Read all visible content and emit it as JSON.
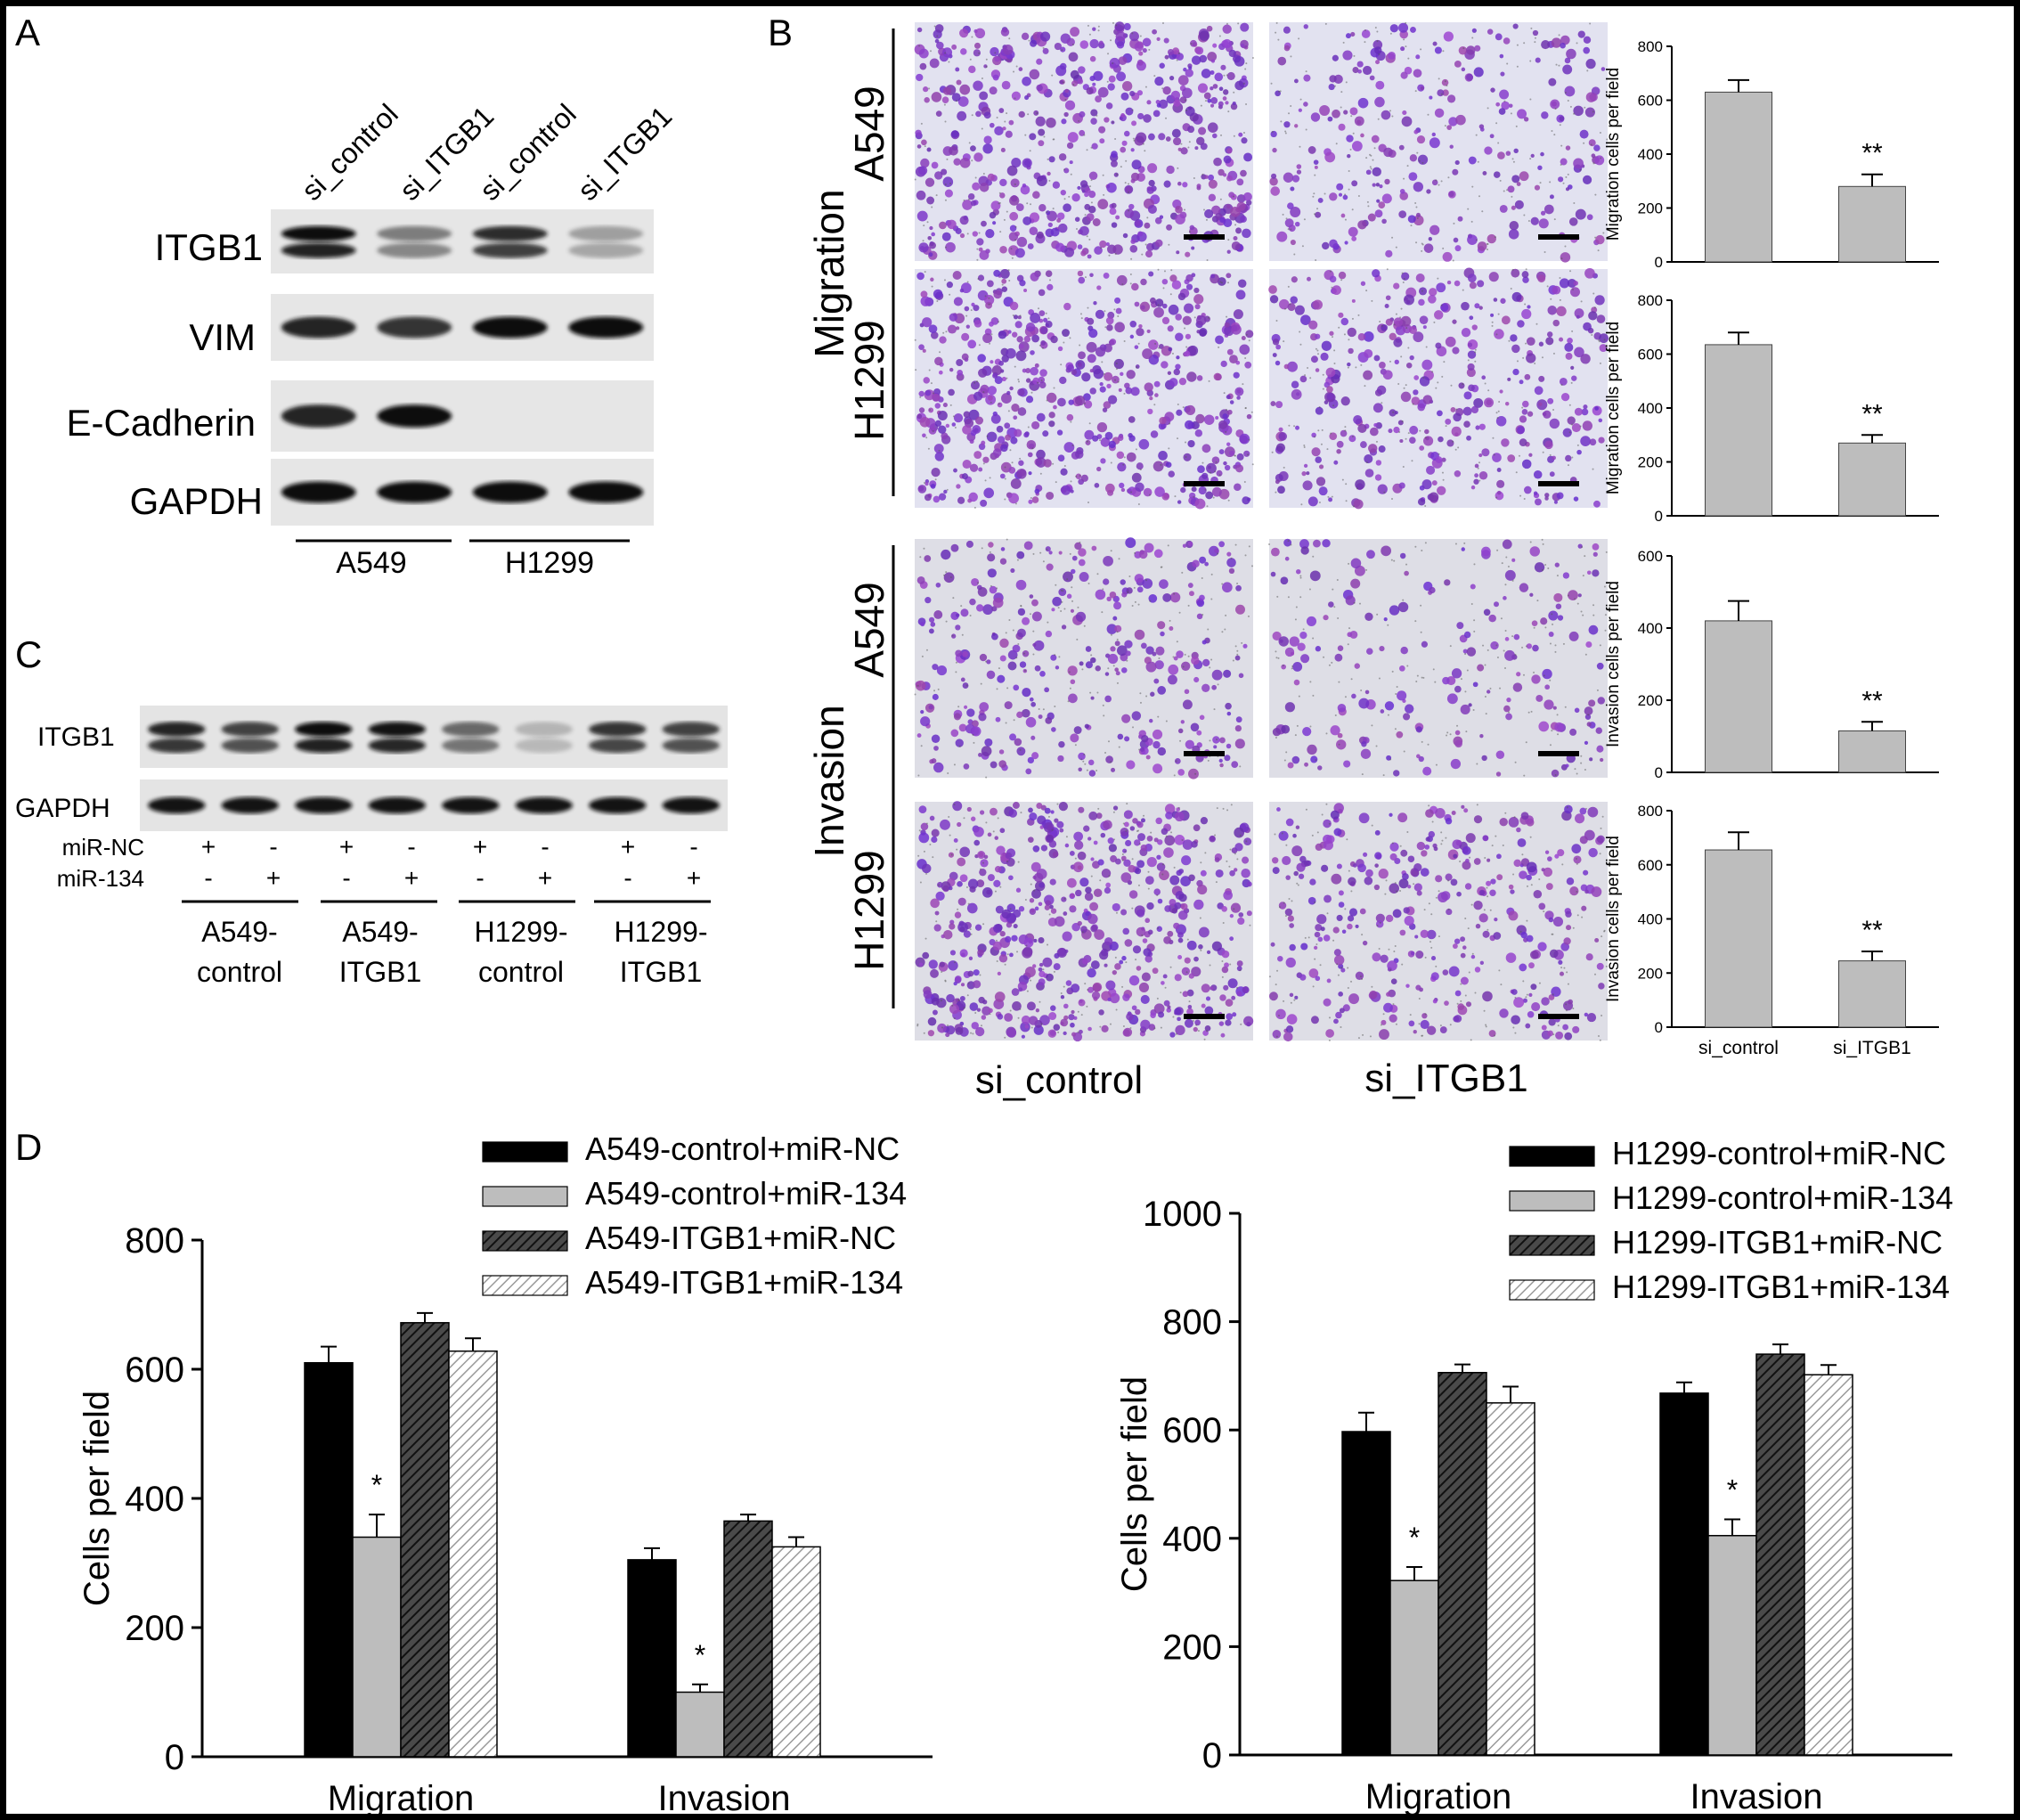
{
  "panels": {
    "A": {
      "letter": "A",
      "lanes": [
        "si_control",
        "si_ITGB1",
        "si_control",
        "si_ITGB1"
      ],
      "blots": [
        {
          "label": "ITGB1",
          "bands": [
            1.0,
            0.4,
            0.8,
            0.2
          ],
          "double": true
        },
        {
          "label": "VIM",
          "bands": [
            0.85,
            0.75,
            1.0,
            0.95
          ],
          "double": false
        },
        {
          "label": "E-Cadherin",
          "bands": [
            0.85,
            0.95,
            0.0,
            0.0
          ],
          "double": false
        },
        {
          "label": "GAPDH",
          "bands": [
            0.95,
            0.95,
            0.95,
            0.95
          ],
          "double": false
        }
      ],
      "groups": [
        "A549",
        "H1299"
      ]
    },
    "B": {
      "letter": "B",
      "sections": [
        "Migration",
        "Invasion"
      ],
      "rows": [
        "A549",
        "H1299",
        "A549",
        "H1299"
      ],
      "columns": [
        "si_control",
        "si_ITGB1"
      ],
      "cell_density": [
        [
          0.95,
          0.4
        ],
        [
          0.95,
          0.6
        ],
        [
          0.5,
          0.25
        ],
        [
          0.98,
          0.55
        ]
      ]
    },
    "C": {
      "letter": "C",
      "blots": [
        {
          "label": "ITGB1",
          "bands": [
            0.85,
            0.7,
            1.0,
            0.9,
            0.5,
            0.05,
            0.75,
            0.7
          ],
          "double": true
        },
        {
          "label": "GAPDH",
          "bands": [
            0.9,
            0.9,
            0.9,
            0.9,
            0.9,
            0.9,
            0.9,
            0.9
          ],
          "double": false
        }
      ],
      "treatments": [
        {
          "label": "miR-NC",
          "signs": [
            "+",
            "-",
            "+",
            "-",
            "+",
            "-",
            "+",
            "-"
          ]
        },
        {
          "label": "miR-134",
          "signs": [
            "-",
            "+",
            "-",
            "+",
            "-",
            "+",
            "-",
            "+"
          ]
        }
      ],
      "groups": [
        {
          "line1": "A549-",
          "line2": "control"
        },
        {
          "line1": "A549-",
          "line2": "ITGB1"
        },
        {
          "line1": "H1299-",
          "line2": "control"
        },
        {
          "line1": "H1299-",
          "line2": "ITGB1"
        }
      ]
    },
    "D": {
      "letter": "D"
    }
  },
  "colors": {
    "bar_gray": "#bdbdbd",
    "cell_stain": "#7a34b8",
    "background_field": "#dcdcec"
  },
  "chart_data": [
    {
      "type": "bar",
      "panel": "B",
      "categories": [
        "si_control",
        "si_ITGB1"
      ],
      "values": [
        630,
        280
      ],
      "errors": [
        45,
        45
      ],
      "significance": [
        "",
        "**"
      ],
      "ylabel": "Migration cells per field",
      "ylim": [
        0,
        800
      ],
      "yticks": [
        0,
        200,
        400,
        600,
        800
      ],
      "show_xticks": false
    },
    {
      "type": "bar",
      "panel": "B",
      "categories": [
        "si_control",
        "si_ITGB1"
      ],
      "values": [
        635,
        270
      ],
      "errors": [
        45,
        30
      ],
      "significance": [
        "",
        "**"
      ],
      "ylabel": "Migration cells per field",
      "ylim": [
        0,
        800
      ],
      "yticks": [
        0,
        200,
        400,
        600,
        800
      ],
      "show_xticks": false
    },
    {
      "type": "bar",
      "panel": "B",
      "categories": [
        "si_control",
        "si_ITGB1"
      ],
      "values": [
        420,
        115
      ],
      "errors": [
        55,
        25
      ],
      "significance": [
        "",
        "**"
      ],
      "ylabel": "Invasion cells per field",
      "ylim": [
        0,
        600
      ],
      "yticks": [
        0,
        200,
        400,
        600
      ],
      "show_xticks": false
    },
    {
      "type": "bar",
      "panel": "B",
      "categories": [
        "si_control",
        "si_ITGB1"
      ],
      "values": [
        655,
        245
      ],
      "errors": [
        65,
        35
      ],
      "significance": [
        "",
        "**"
      ],
      "ylabel": "Invasion cells per field",
      "ylim": [
        0,
        800
      ],
      "yticks": [
        0,
        200,
        400,
        600,
        800
      ],
      "show_xticks": true
    },
    {
      "type": "bar",
      "panel": "D",
      "categories": [
        "Migration",
        "Invasion"
      ],
      "series": [
        {
          "name": "A549-control+miR-NC",
          "values": [
            610,
            305
          ],
          "errors": [
            25,
            18
          ],
          "style": "solid-black"
        },
        {
          "name": "A549-control+miR-134",
          "values": [
            340,
            100
          ],
          "errors": [
            35,
            12
          ],
          "style": "solid-gray"
        },
        {
          "name": "A549-ITGB1+miR-NC",
          "values": [
            672,
            365
          ],
          "errors": [
            15,
            10
          ],
          "style": "hatch-dark"
        },
        {
          "name": "A549-ITGB1+miR-134",
          "values": [
            628,
            325
          ],
          "errors": [
            20,
            15
          ],
          "style": "hatch-light"
        }
      ],
      "significance": [
        [
          "",
          "*",
          "",
          ""
        ],
        [
          "",
          "*",
          "",
          ""
        ]
      ],
      "ylabel": "Cells per field",
      "ylim": [
        0,
        800
      ],
      "yticks": [
        0,
        200,
        400,
        600,
        800
      ]
    },
    {
      "type": "bar",
      "panel": "D",
      "categories": [
        "Migration",
        "Invasion"
      ],
      "series": [
        {
          "name": "H1299-control+miR-NC",
          "values": [
            597,
            668
          ],
          "errors": [
            35,
            20
          ],
          "style": "solid-black"
        },
        {
          "name": "H1299-control+miR-134",
          "values": [
            322,
            405
          ],
          "errors": [
            25,
            30
          ],
          "style": "solid-gray"
        },
        {
          "name": "H1299-ITGB1+miR-NC",
          "values": [
            706,
            740
          ],
          "errors": [
            15,
            18
          ],
          "style": "hatch-dark"
        },
        {
          "name": "H1299-ITGB1+miR-134",
          "values": [
            650,
            702
          ],
          "errors": [
            30,
            18
          ],
          "style": "hatch-light"
        }
      ],
      "significance": [
        [
          "",
          "*",
          "",
          ""
        ],
        [
          "",
          "*",
          "",
          ""
        ]
      ],
      "ylabel": "Cells per field",
      "ylim": [
        0,
        1000
      ],
      "yticks": [
        0,
        200,
        400,
        600,
        800,
        1000
      ]
    }
  ]
}
